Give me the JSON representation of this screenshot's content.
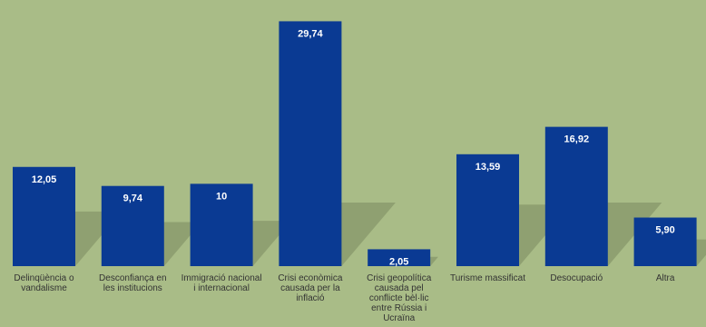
{
  "chart_data": {
    "type": "bar",
    "categories": [
      [
        "Delinqüència o",
        "vandalisme"
      ],
      [
        "Desconfiança en",
        "les institucions"
      ],
      [
        "Immigració nacional",
        "i internacional"
      ],
      [
        "Crisi econòmica",
        "causada per la",
        "inflació"
      ],
      [
        "Crisi geopolítica",
        "causada pel",
        "conflicte bèl·lic",
        "entre Rússia i",
        "Ucraïna"
      ],
      [
        "Turisme massificat"
      ],
      [
        "Desocupació"
      ],
      [
        "Altra"
      ]
    ],
    "values": [
      12.05,
      9.74,
      10,
      29.74,
      2.05,
      13.59,
      16.92,
      5.9
    ],
    "value_labels": [
      "12,05",
      "9,74",
      "10",
      "29,74",
      "2,05",
      "13,59",
      "16,92",
      "5,90"
    ],
    "title": "",
    "xlabel": "",
    "ylabel": "",
    "ylim": [
      0,
      31
    ],
    "grid": false,
    "legend": "none",
    "colors": {
      "bar": "#0a3a93",
      "background": "#a9bc87",
      "shadow": "#6f7f57"
    }
  }
}
